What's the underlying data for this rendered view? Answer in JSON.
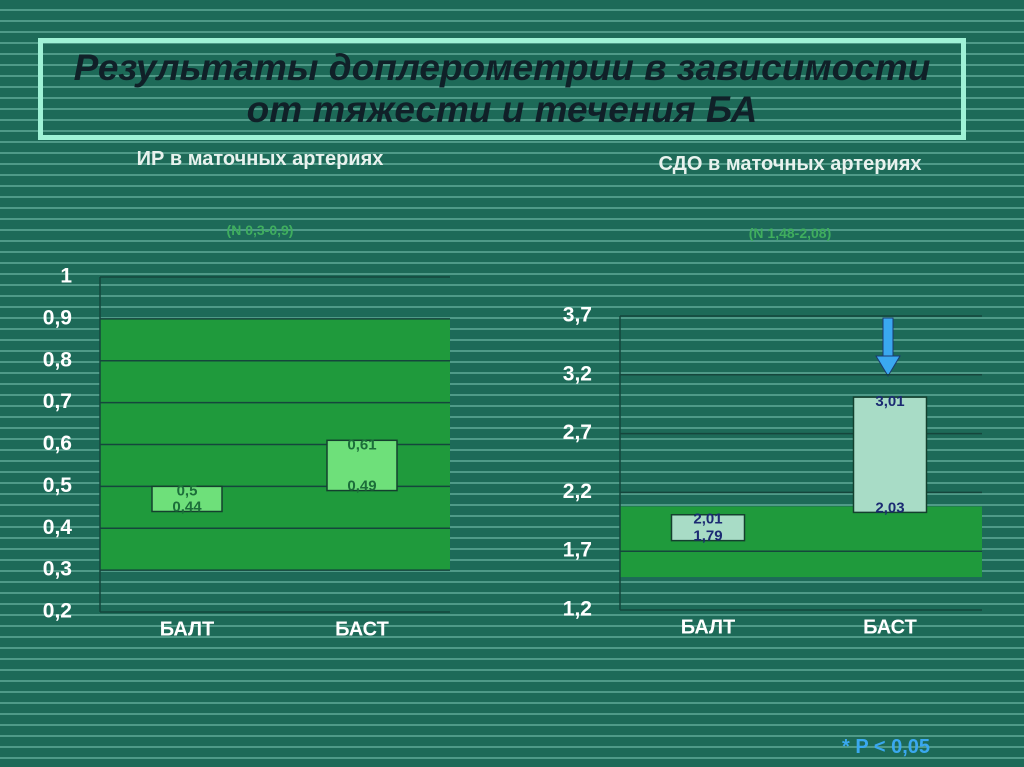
{
  "title": "Результаты доплерометрии в зависимости от тяжести и течения БА",
  "footnote": "* P < 0,05",
  "chart_data": [
    {
      "type": "floating_bar",
      "title": "ИР в маточных артериях",
      "subtitle": "(N 0,3-0,9)",
      "categories": [
        "БАЛТ",
        "БАСТ"
      ],
      "values": [
        [
          0.44,
          0.5
        ],
        [
          0.49,
          0.61
        ]
      ],
      "value_labels": [
        [
          "0,44",
          "0,5"
        ],
        [
          "0,49",
          "0,61"
        ]
      ],
      "normal_range": [
        0.3,
        0.9
      ],
      "normal_color": "#1f9a3c",
      "color": "#6ee07a",
      "label_color": "#1c6e3a",
      "ylim": [
        0.2,
        1
      ],
      "yticks": [
        {
          "value": 0.2,
          "label": "0,2"
        },
        {
          "value": 0.3,
          "label": "0,3"
        },
        {
          "value": 0.4,
          "label": "0,4"
        },
        {
          "value": 0.5,
          "label": "0,5"
        },
        {
          "value": 0.6,
          "label": "0,6"
        },
        {
          "value": 0.7,
          "label": "0,7"
        },
        {
          "value": 0.8,
          "label": "0,8"
        },
        {
          "value": 0.9,
          "label": "0,9"
        },
        1
      ],
      "grid": true
    },
    {
      "type": "floating_bar",
      "title": "СДО в маточных артериях",
      "subtitle": "(N 1,48-2,08)",
      "categories": [
        "БАЛТ",
        "БАСТ"
      ],
      "values": [
        [
          1.79,
          2.01
        ],
        [
          2.03,
          3.01
        ]
      ],
      "value_labels": [
        [
          "1,79",
          "2,01"
        ],
        [
          "2,03",
          "3,01"
        ]
      ],
      "normal_range": [
        1.48,
        2.08
      ],
      "normal_color": "#1f9a3c",
      "color": "#a8dcc6",
      "label_color": "#1b2a72",
      "ylim": [
        1.2,
        3.7
      ],
      "yticks": [
        {
          "value": 1.2,
          "label": "1,2"
        },
        {
          "value": 1.7,
          "label": "1,7"
        },
        {
          "value": 2.2,
          "label": "2,2"
        },
        {
          "value": 2.7,
          "label": "2,7"
        },
        {
          "value": 3.2,
          "label": "3,2"
        },
        {
          "value": 3.7,
          "label": "3,7"
        }
      ],
      "grid": true
    }
  ]
}
